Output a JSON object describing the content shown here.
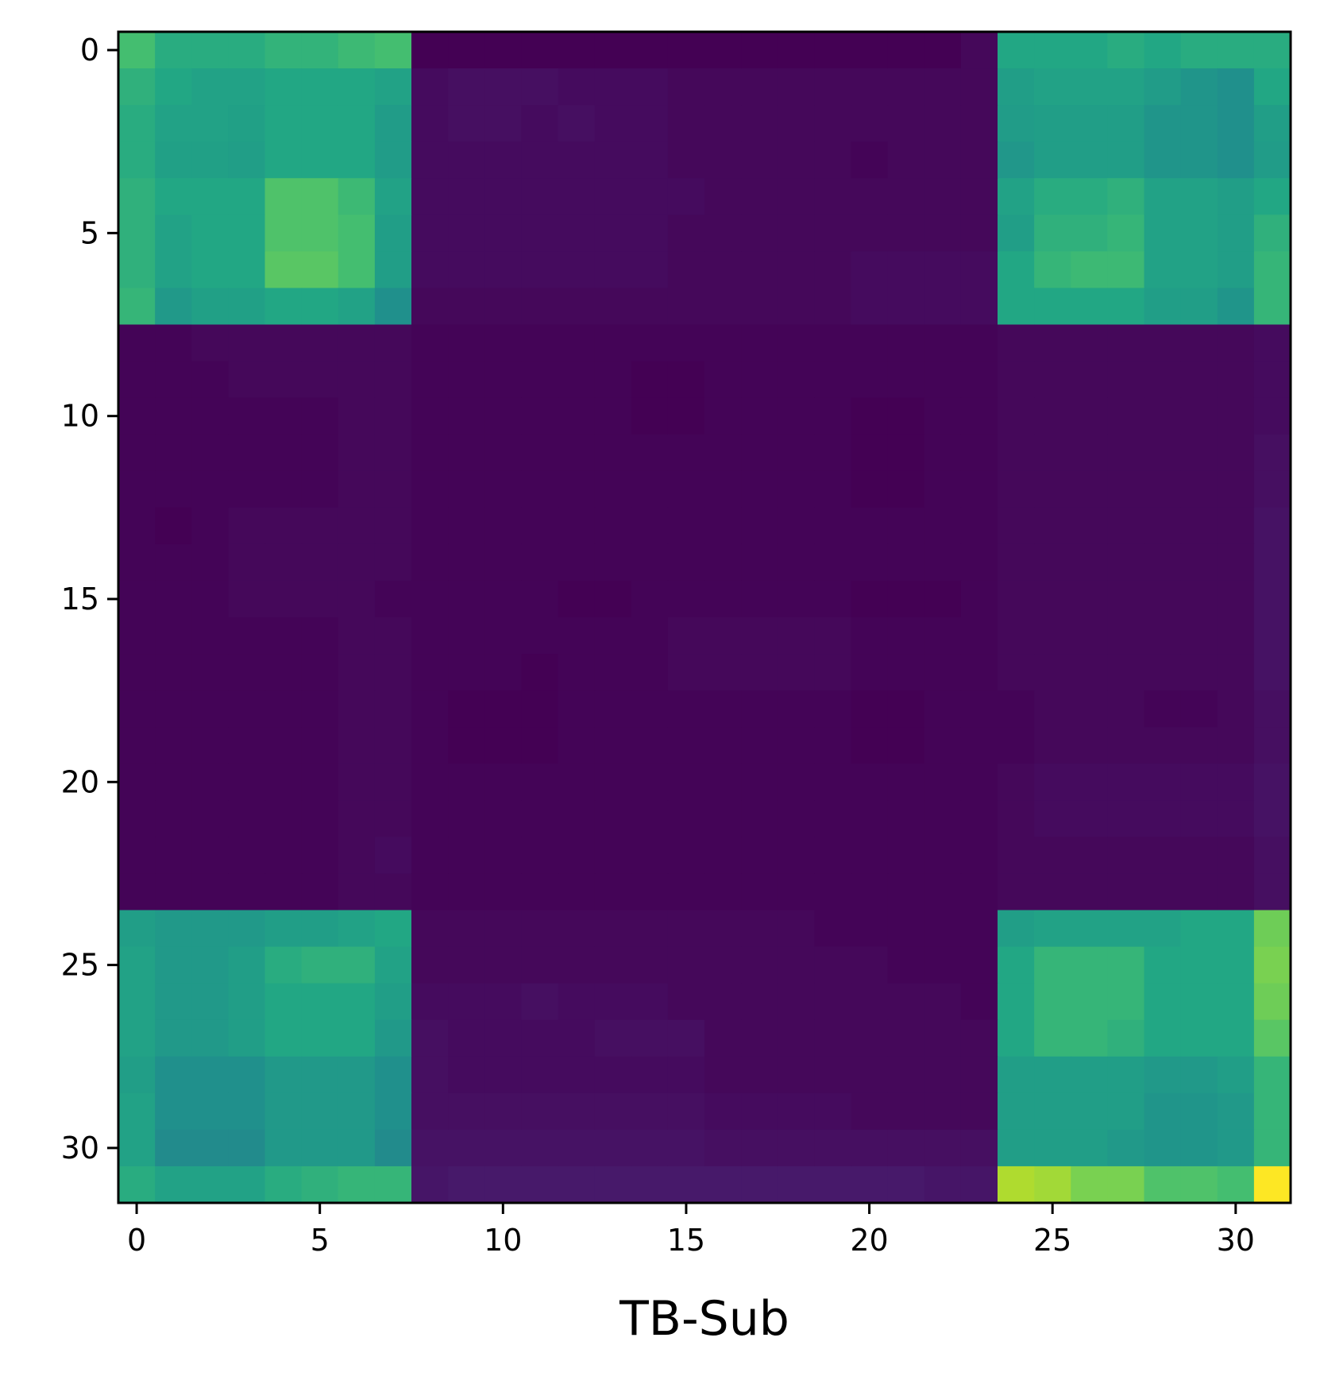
{
  "chart_data": {
    "type": "heatmap",
    "title": "",
    "xlabel": "TB-Sub",
    "ylabel": "",
    "rows": 32,
    "cols": 32,
    "xlim": [
      -0.5,
      31.5
    ],
    "ylim": [
      31.5,
      -0.5
    ],
    "x_ticks": [
      0,
      5,
      10,
      15,
      20,
      25,
      30
    ],
    "y_ticks": [
      0,
      5,
      10,
      15,
      20,
      25,
      30
    ],
    "colormap": "viridis",
    "value_range": [
      0,
      1
    ],
    "grid": false,
    "legend": "none",
    "values": [
      [
        0.7,
        0.62,
        0.62,
        0.62,
        0.65,
        0.65,
        0.68,
        0.7,
        0.0,
        0.0,
        0.0,
        0.0,
        0.0,
        0.0,
        0.0,
        0.0,
        0.0,
        0.0,
        0.0,
        0.0,
        0.0,
        0.0,
        0.0,
        0.02,
        0.6,
        0.6,
        0.6,
        0.62,
        0.6,
        0.62,
        0.62,
        0.62
      ],
      [
        0.64,
        0.6,
        0.58,
        0.58,
        0.6,
        0.6,
        0.6,
        0.58,
        0.03,
        0.04,
        0.04,
        0.04,
        0.03,
        0.03,
        0.03,
        0.02,
        0.02,
        0.02,
        0.02,
        0.02,
        0.02,
        0.02,
        0.02,
        0.02,
        0.56,
        0.58,
        0.58,
        0.58,
        0.55,
        0.52,
        0.5,
        0.6
      ],
      [
        0.62,
        0.58,
        0.58,
        0.57,
        0.6,
        0.6,
        0.6,
        0.55,
        0.03,
        0.04,
        0.04,
        0.03,
        0.04,
        0.03,
        0.03,
        0.02,
        0.02,
        0.02,
        0.02,
        0.02,
        0.02,
        0.02,
        0.02,
        0.02,
        0.55,
        0.56,
        0.56,
        0.56,
        0.52,
        0.52,
        0.5,
        0.56
      ],
      [
        0.62,
        0.57,
        0.57,
        0.56,
        0.6,
        0.6,
        0.6,
        0.55,
        0.03,
        0.03,
        0.03,
        0.03,
        0.03,
        0.03,
        0.03,
        0.02,
        0.02,
        0.02,
        0.02,
        0.02,
        0.01,
        0.02,
        0.02,
        0.02,
        0.53,
        0.56,
        0.56,
        0.56,
        0.52,
        0.52,
        0.5,
        0.55
      ],
      [
        0.64,
        0.6,
        0.6,
        0.6,
        0.72,
        0.72,
        0.68,
        0.58,
        0.03,
        0.03,
        0.03,
        0.03,
        0.03,
        0.03,
        0.03,
        0.03,
        0.02,
        0.02,
        0.02,
        0.02,
        0.02,
        0.02,
        0.02,
        0.02,
        0.58,
        0.62,
        0.62,
        0.64,
        0.58,
        0.58,
        0.56,
        0.6
      ],
      [
        0.64,
        0.58,
        0.6,
        0.6,
        0.72,
        0.72,
        0.7,
        0.56,
        0.03,
        0.03,
        0.03,
        0.03,
        0.03,
        0.03,
        0.03,
        0.02,
        0.02,
        0.02,
        0.02,
        0.02,
        0.02,
        0.02,
        0.02,
        0.02,
        0.56,
        0.64,
        0.64,
        0.66,
        0.58,
        0.58,
        0.56,
        0.64
      ],
      [
        0.64,
        0.58,
        0.6,
        0.6,
        0.74,
        0.74,
        0.7,
        0.56,
        0.03,
        0.03,
        0.03,
        0.03,
        0.03,
        0.03,
        0.03,
        0.02,
        0.02,
        0.02,
        0.02,
        0.02,
        0.03,
        0.03,
        0.03,
        0.03,
        0.6,
        0.66,
        0.68,
        0.68,
        0.58,
        0.58,
        0.56,
        0.66
      ],
      [
        0.66,
        0.54,
        0.57,
        0.57,
        0.6,
        0.6,
        0.58,
        0.5,
        0.02,
        0.02,
        0.02,
        0.02,
        0.02,
        0.02,
        0.02,
        0.02,
        0.02,
        0.02,
        0.02,
        0.02,
        0.03,
        0.03,
        0.03,
        0.03,
        0.6,
        0.6,
        0.6,
        0.6,
        0.56,
        0.56,
        0.52,
        0.66
      ],
      [
        0.01,
        0.01,
        0.02,
        0.02,
        0.02,
        0.02,
        0.02,
        0.02,
        0.01,
        0.01,
        0.01,
        0.01,
        0.01,
        0.01,
        0.01,
        0.01,
        0.01,
        0.01,
        0.01,
        0.01,
        0.01,
        0.01,
        0.01,
        0.01,
        0.02,
        0.02,
        0.02,
        0.02,
        0.02,
        0.02,
        0.02,
        0.03
      ],
      [
        0.01,
        0.01,
        0.01,
        0.02,
        0.02,
        0.02,
        0.02,
        0.02,
        0.01,
        0.01,
        0.01,
        0.01,
        0.01,
        0.01,
        0.0,
        0.0,
        0.01,
        0.01,
        0.01,
        0.01,
        0.01,
        0.01,
        0.01,
        0.01,
        0.02,
        0.02,
        0.02,
        0.02,
        0.02,
        0.02,
        0.02,
        0.03
      ],
      [
        0.01,
        0.01,
        0.01,
        0.01,
        0.01,
        0.01,
        0.02,
        0.02,
        0.01,
        0.01,
        0.01,
        0.01,
        0.01,
        0.01,
        0.0,
        0.0,
        0.01,
        0.01,
        0.01,
        0.01,
        0.0,
        0.0,
        0.01,
        0.01,
        0.02,
        0.02,
        0.02,
        0.02,
        0.02,
        0.02,
        0.02,
        0.03
      ],
      [
        0.01,
        0.01,
        0.01,
        0.01,
        0.01,
        0.01,
        0.02,
        0.02,
        0.01,
        0.01,
        0.01,
        0.01,
        0.01,
        0.01,
        0.01,
        0.01,
        0.01,
        0.01,
        0.01,
        0.01,
        0.0,
        0.0,
        0.01,
        0.01,
        0.02,
        0.02,
        0.02,
        0.02,
        0.02,
        0.02,
        0.02,
        0.04
      ],
      [
        0.01,
        0.01,
        0.01,
        0.01,
        0.01,
        0.01,
        0.02,
        0.02,
        0.01,
        0.01,
        0.01,
        0.01,
        0.01,
        0.01,
        0.01,
        0.01,
        0.01,
        0.01,
        0.01,
        0.01,
        0.0,
        0.0,
        0.01,
        0.01,
        0.02,
        0.02,
        0.02,
        0.02,
        0.02,
        0.02,
        0.02,
        0.04
      ],
      [
        0.01,
        0.0,
        0.01,
        0.02,
        0.02,
        0.02,
        0.02,
        0.02,
        0.01,
        0.01,
        0.01,
        0.01,
        0.01,
        0.01,
        0.01,
        0.01,
        0.01,
        0.01,
        0.01,
        0.01,
        0.01,
        0.01,
        0.01,
        0.01,
        0.02,
        0.02,
        0.02,
        0.02,
        0.02,
        0.02,
        0.02,
        0.05
      ],
      [
        0.01,
        0.01,
        0.01,
        0.02,
        0.02,
        0.02,
        0.02,
        0.02,
        0.01,
        0.01,
        0.01,
        0.01,
        0.01,
        0.01,
        0.01,
        0.01,
        0.01,
        0.01,
        0.01,
        0.01,
        0.01,
        0.01,
        0.01,
        0.01,
        0.02,
        0.02,
        0.02,
        0.02,
        0.02,
        0.02,
        0.02,
        0.05
      ],
      [
        0.01,
        0.01,
        0.01,
        0.02,
        0.02,
        0.02,
        0.02,
        0.01,
        0.01,
        0.01,
        0.01,
        0.01,
        0.0,
        0.0,
        0.01,
        0.01,
        0.01,
        0.01,
        0.01,
        0.01,
        0.0,
        0.0,
        0.0,
        0.01,
        0.02,
        0.02,
        0.02,
        0.02,
        0.02,
        0.02,
        0.02,
        0.05
      ],
      [
        0.01,
        0.01,
        0.01,
        0.01,
        0.01,
        0.01,
        0.02,
        0.02,
        0.01,
        0.01,
        0.01,
        0.01,
        0.01,
        0.01,
        0.01,
        0.02,
        0.02,
        0.02,
        0.02,
        0.02,
        0.01,
        0.01,
        0.01,
        0.01,
        0.02,
        0.02,
        0.02,
        0.02,
        0.02,
        0.02,
        0.02,
        0.05
      ],
      [
        0.01,
        0.01,
        0.01,
        0.01,
        0.01,
        0.01,
        0.02,
        0.02,
        0.01,
        0.01,
        0.01,
        0.0,
        0.01,
        0.01,
        0.01,
        0.02,
        0.02,
        0.02,
        0.02,
        0.02,
        0.01,
        0.01,
        0.01,
        0.01,
        0.02,
        0.02,
        0.02,
        0.02,
        0.02,
        0.02,
        0.02,
        0.05
      ],
      [
        0.01,
        0.01,
        0.01,
        0.01,
        0.01,
        0.01,
        0.02,
        0.02,
        0.01,
        0.0,
        0.0,
        0.0,
        0.01,
        0.01,
        0.01,
        0.01,
        0.01,
        0.01,
        0.01,
        0.01,
        0.0,
        0.0,
        0.01,
        0.01,
        0.01,
        0.02,
        0.02,
        0.02,
        0.01,
        0.01,
        0.02,
        0.04
      ],
      [
        0.01,
        0.01,
        0.01,
        0.01,
        0.01,
        0.01,
        0.02,
        0.02,
        0.01,
        0.0,
        0.0,
        0.0,
        0.01,
        0.01,
        0.01,
        0.01,
        0.01,
        0.01,
        0.01,
        0.01,
        0.0,
        0.0,
        0.01,
        0.01,
        0.01,
        0.02,
        0.02,
        0.02,
        0.02,
        0.02,
        0.02,
        0.04
      ],
      [
        0.01,
        0.01,
        0.01,
        0.01,
        0.01,
        0.01,
        0.02,
        0.02,
        0.01,
        0.01,
        0.01,
        0.01,
        0.01,
        0.01,
        0.01,
        0.01,
        0.01,
        0.01,
        0.01,
        0.01,
        0.01,
        0.01,
        0.01,
        0.01,
        0.02,
        0.03,
        0.03,
        0.03,
        0.03,
        0.03,
        0.03,
        0.05
      ],
      [
        0.01,
        0.01,
        0.01,
        0.01,
        0.01,
        0.01,
        0.02,
        0.02,
        0.01,
        0.01,
        0.01,
        0.01,
        0.01,
        0.01,
        0.01,
        0.01,
        0.01,
        0.01,
        0.01,
        0.01,
        0.01,
        0.01,
        0.01,
        0.01,
        0.02,
        0.03,
        0.03,
        0.03,
        0.03,
        0.03,
        0.03,
        0.05
      ],
      [
        0.01,
        0.01,
        0.01,
        0.01,
        0.01,
        0.01,
        0.02,
        0.03,
        0.01,
        0.01,
        0.01,
        0.01,
        0.01,
        0.01,
        0.01,
        0.01,
        0.01,
        0.01,
        0.01,
        0.01,
        0.01,
        0.01,
        0.01,
        0.01,
        0.02,
        0.02,
        0.02,
        0.02,
        0.02,
        0.02,
        0.02,
        0.04
      ],
      [
        0.01,
        0.01,
        0.01,
        0.01,
        0.01,
        0.01,
        0.02,
        0.02,
        0.01,
        0.01,
        0.01,
        0.01,
        0.01,
        0.01,
        0.01,
        0.01,
        0.01,
        0.01,
        0.01,
        0.01,
        0.01,
        0.01,
        0.01,
        0.01,
        0.02,
        0.02,
        0.02,
        0.02,
        0.02,
        0.02,
        0.02,
        0.04
      ],
      [
        0.56,
        0.54,
        0.54,
        0.54,
        0.56,
        0.56,
        0.58,
        0.6,
        0.02,
        0.02,
        0.02,
        0.02,
        0.02,
        0.02,
        0.02,
        0.02,
        0.02,
        0.02,
        0.02,
        0.01,
        0.01,
        0.01,
        0.01,
        0.01,
        0.56,
        0.58,
        0.58,
        0.58,
        0.58,
        0.6,
        0.6,
        0.78
      ],
      [
        0.58,
        0.54,
        0.54,
        0.56,
        0.62,
        0.64,
        0.64,
        0.58,
        0.02,
        0.02,
        0.02,
        0.02,
        0.02,
        0.02,
        0.02,
        0.02,
        0.02,
        0.02,
        0.02,
        0.02,
        0.02,
        0.01,
        0.01,
        0.01,
        0.6,
        0.66,
        0.66,
        0.66,
        0.6,
        0.6,
        0.6,
        0.8
      ],
      [
        0.58,
        0.54,
        0.54,
        0.56,
        0.6,
        0.6,
        0.6,
        0.56,
        0.03,
        0.03,
        0.03,
        0.04,
        0.03,
        0.03,
        0.03,
        0.02,
        0.02,
        0.02,
        0.02,
        0.02,
        0.02,
        0.02,
        0.02,
        0.01,
        0.6,
        0.66,
        0.66,
        0.66,
        0.6,
        0.6,
        0.6,
        0.78
      ],
      [
        0.58,
        0.54,
        0.54,
        0.56,
        0.6,
        0.6,
        0.6,
        0.54,
        0.04,
        0.03,
        0.03,
        0.03,
        0.03,
        0.04,
        0.04,
        0.04,
        0.02,
        0.02,
        0.02,
        0.02,
        0.02,
        0.02,
        0.02,
        0.02,
        0.6,
        0.66,
        0.66,
        0.64,
        0.6,
        0.6,
        0.6,
        0.74
      ],
      [
        0.56,
        0.5,
        0.5,
        0.5,
        0.54,
        0.54,
        0.54,
        0.5,
        0.04,
        0.03,
        0.03,
        0.03,
        0.03,
        0.03,
        0.03,
        0.03,
        0.02,
        0.02,
        0.02,
        0.02,
        0.02,
        0.02,
        0.02,
        0.02,
        0.56,
        0.56,
        0.56,
        0.56,
        0.54,
        0.54,
        0.56,
        0.66
      ],
      [
        0.58,
        0.5,
        0.5,
        0.5,
        0.54,
        0.54,
        0.54,
        0.5,
        0.04,
        0.04,
        0.04,
        0.04,
        0.04,
        0.04,
        0.04,
        0.04,
        0.03,
        0.03,
        0.03,
        0.03,
        0.02,
        0.02,
        0.02,
        0.02,
        0.56,
        0.56,
        0.56,
        0.56,
        0.52,
        0.52,
        0.54,
        0.66
      ],
      [
        0.58,
        0.48,
        0.48,
        0.48,
        0.54,
        0.54,
        0.54,
        0.48,
        0.05,
        0.05,
        0.05,
        0.05,
        0.05,
        0.05,
        0.05,
        0.05,
        0.04,
        0.04,
        0.04,
        0.04,
        0.04,
        0.04,
        0.04,
        0.04,
        0.56,
        0.56,
        0.56,
        0.54,
        0.52,
        0.52,
        0.54,
        0.66
      ],
      [
        0.62,
        0.58,
        0.58,
        0.58,
        0.62,
        0.64,
        0.66,
        0.66,
        0.06,
        0.07,
        0.07,
        0.07,
        0.07,
        0.07,
        0.07,
        0.07,
        0.07,
        0.07,
        0.07,
        0.07,
        0.07,
        0.07,
        0.06,
        0.06,
        0.88,
        0.86,
        0.8,
        0.8,
        0.72,
        0.72,
        0.7,
        1.0
      ]
    ]
  }
}
